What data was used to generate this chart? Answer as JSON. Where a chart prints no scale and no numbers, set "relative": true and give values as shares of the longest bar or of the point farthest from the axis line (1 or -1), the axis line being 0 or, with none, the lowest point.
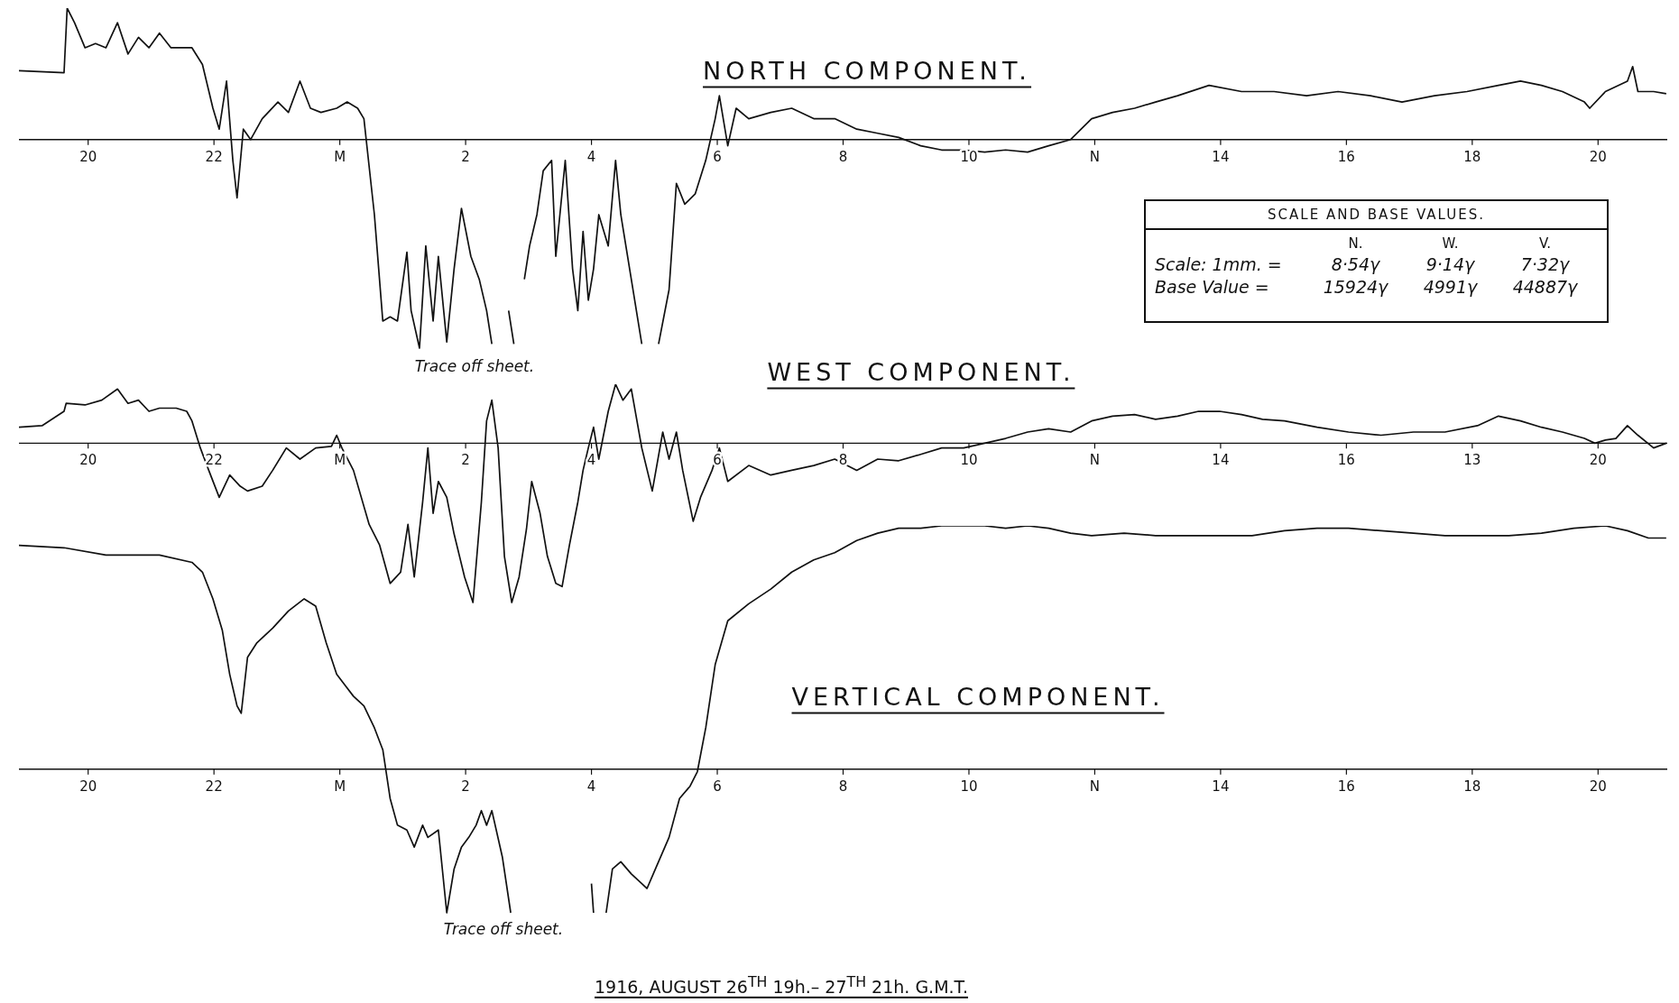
{
  "chart_data": [
    {
      "type": "line",
      "title": "NORTH COMPONENT.",
      "relative": true,
      "marker": "none",
      "color": "#111111",
      "annotations": [
        "Trace off sheet."
      ],
      "xlim": [
        "1916-08-26T18:54",
        "1916-08-27T21:06"
      ],
      "xticks": [
        {
          "value": "1916-08-26T20:00",
          "label": "20"
        },
        {
          "value": "1916-08-26T22:00",
          "label": "22"
        },
        {
          "value": "1916-08-27T00:00",
          "label": "M"
        },
        {
          "value": "1916-08-27T02:00",
          "label": "2"
        },
        {
          "value": "1916-08-27T04:00",
          "label": "4"
        },
        {
          "value": "1916-08-27T06:00",
          "label": "6"
        },
        {
          "value": "1916-08-27T08:00",
          "label": "8"
        },
        {
          "value": "1916-08-27T10:00",
          "label": "10"
        },
        {
          "value": "1916-08-27T12:00",
          "label": "N"
        },
        {
          "value": "1916-08-27T14:00",
          "label": "14"
        },
        {
          "value": "1916-08-27T16:00",
          "label": "16"
        },
        {
          "value": "1916-08-27T18:00",
          "label": "18"
        },
        {
          "value": "1916-08-27T20:00",
          "label": "20"
        }
      ],
      "x": [
        "1916-08-26T18:54",
        "1916-08-26T19:37",
        "1916-08-26T19:40",
        "1916-08-26T19:47",
        "1916-08-26T19:57",
        "1916-08-26T20:07",
        "1916-08-26T20:17",
        "1916-08-26T20:28",
        "1916-08-26T20:38",
        "1916-08-26T20:48",
        "1916-08-26T20:58",
        "1916-08-26T21:08",
        "1916-08-26T21:19",
        "1916-08-26T21:39",
        "1916-08-26T21:49",
        "1916-08-26T21:59",
        "1916-08-26T22:05",
        "1916-08-26T22:12",
        "1916-08-26T22:18",
        "1916-08-26T22:22",
        "1916-08-26T22:28",
        "1916-08-26T22:35",
        "1916-08-26T22:46",
        "1916-08-26T23:01",
        "1916-08-26T23:11",
        "1916-08-26T23:22",
        "1916-08-26T23:32",
        "1916-08-26T23:42",
        "1916-08-26T23:57",
        "1916-08-27T00:07",
        "1916-08-27T00:17",
        "1916-08-27T00:23",
        "1916-08-27T00:33",
        "1916-08-27T00:41",
        "1916-08-27T00:48",
        "1916-08-27T00:55",
        "1916-08-27T01:04",
        "1916-08-27T01:08",
        "1916-08-27T01:16",
        "1916-08-27T01:22",
        "1916-08-27T01:29",
        "1916-08-27T01:34",
        "1916-08-27T01:42",
        "1916-08-27T01:49",
        "1916-08-27T01:56",
        "1916-08-27T02:05",
        "1916-08-27T02:13",
        "1916-08-27T02:20",
        "1916-08-27T02:25",
        "1916-08-27T02:32",
        "1916-08-27T02:41",
        "1916-08-27T02:46",
        "1916-08-27T02:51",
        "1916-08-27T02:56",
        "1916-08-27T03:01",
        "1916-08-27T03:08",
        "1916-08-27T03:14",
        "1916-08-27T03:22",
        "1916-08-27T03:26",
        "1916-08-27T03:35",
        "1916-08-27T03:42",
        "1916-08-27T03:47",
        "1916-08-27T03:52",
        "1916-08-27T03:57",
        "1916-08-27T04:02",
        "1916-08-27T04:07",
        "1916-08-27T04:16",
        "1916-08-27T04:23",
        "1916-08-27T04:28",
        "1916-08-27T04:38",
        "1916-08-27T04:48",
        "1916-08-27T04:55",
        "1916-08-27T05:04",
        "1916-08-27T05:14",
        "1916-08-27T05:21",
        "1916-08-27T05:29",
        "1916-08-27T05:39",
        "1916-08-27T05:49",
        "1916-08-27T05:58",
        "1916-08-27T06:02",
        "1916-08-27T06:10",
        "1916-08-27T06:18",
        "1916-08-27T06:30",
        "1916-08-27T06:51",
        "1916-08-27T07:11",
        "1916-08-27T07:32",
        "1916-08-27T07:52",
        "1916-08-27T08:13",
        "1916-08-27T08:33",
        "1916-08-27T08:53",
        "1916-08-27T09:14",
        "1916-08-27T09:34",
        "1916-08-27T09:55",
        "1916-08-27T10:15",
        "1916-08-27T10:35",
        "1916-08-27T10:56",
        "1916-08-27T11:16",
        "1916-08-27T11:37",
        "1916-08-27T11:57",
        "1916-08-27T12:17",
        "1916-08-27T12:38",
        "1916-08-27T12:58",
        "1916-08-27T13:19",
        "1916-08-27T13:49",
        "1916-08-27T14:20",
        "1916-08-27T14:51",
        "1916-08-27T15:22",
        "1916-08-27T15:52",
        "1916-08-27T16:23",
        "1916-08-27T16:53",
        "1916-08-27T17:24",
        "1916-08-27T17:55",
        "1916-08-27T18:25",
        "1916-08-27T18:46",
        "1916-08-27T19:06",
        "1916-08-27T19:26",
        "1916-08-27T19:47",
        "1916-08-27T19:52",
        "1916-08-27T20:07",
        "1916-08-27T20:28",
        "1916-08-27T20:33",
        "1916-08-27T20:38",
        "1916-08-27T20:53",
        "1916-08-27T21:05"
      ],
      "values": [
        0.33,
        0.32,
        0.63,
        0.56,
        0.44,
        0.46,
        0.44,
        0.56,
        0.41,
        0.49,
        0.44,
        0.51,
        0.44,
        0.44,
        0.36,
        0.15,
        0.05,
        0.28,
        -0.1,
        -0.28,
        0.05,
        0,
        0.1,
        0.18,
        0.13,
        0.28,
        0.15,
        0.13,
        0.15,
        0.18,
        0.15,
        0.1,
        -0.36,
        -0.87,
        -0.85,
        -0.87,
        -0.54,
        -0.82,
        -1,
        -0.51,
        -0.87,
        -0.56,
        -0.97,
        -0.62,
        -0.33,
        -0.56,
        -0.67,
        -0.82,
        -0.98,
        null,
        -0.82,
        -0.98,
        null,
        -0.67,
        -0.51,
        -0.36,
        -0.15,
        -0.1,
        -0.56,
        -0.1,
        -0.62,
        -0.82,
        -0.44,
        -0.77,
        -0.62,
        -0.36,
        -0.51,
        -0.1,
        -0.36,
        -0.67,
        -0.98,
        null,
        -0.98,
        -0.72,
        -0.21,
        -0.31,
        -0.26,
        -0.1,
        0.1,
        0.21,
        -0.03,
        0.15,
        0.1,
        0.13,
        0.15,
        0.1,
        0.1,
        0.05,
        0.03,
        0.01,
        -0.03,
        -0.05,
        -0.05,
        -0.06,
        -0.05,
        -0.06,
        -0.03,
        0,
        0.1,
        0.13,
        0.15,
        0.18,
        0.21,
        0.26,
        0.23,
        0.23,
        0.21,
        0.23,
        0.21,
        0.18,
        0.21,
        0.23,
        0.26,
        0.28,
        0.26,
        0.23,
        0.18,
        0.15,
        0.23,
        0.28,
        0.35,
        0.23,
        0.23,
        0.22
      ]
    },
    {
      "type": "line",
      "title": "WEST COMPONENT.",
      "relative": true,
      "marker": "none",
      "color": "#111111",
      "xlim": [
        "1916-08-26T18:54",
        "1916-08-27T21:06"
      ],
      "xticks": [
        {
          "value": "1916-08-26T20:00",
          "label": "20"
        },
        {
          "value": "1916-08-26T22:00",
          "label": "22"
        },
        {
          "value": "1916-08-27T00:00",
          "label": "M"
        },
        {
          "value": "1916-08-27T02:00",
          "label": "2"
        },
        {
          "value": "1916-08-27T04:00",
          "label": "4"
        },
        {
          "value": "1916-08-27T06:00",
          "label": "6"
        },
        {
          "value": "1916-08-27T08:00",
          "label": "8"
        },
        {
          "value": "1916-08-27T10:00",
          "label": "10"
        },
        {
          "value": "1916-08-27T12:00",
          "label": "N"
        },
        {
          "value": "1916-08-27T14:00",
          "label": "14"
        },
        {
          "value": "1916-08-27T16:00",
          "label": "16"
        },
        {
          "value": "1916-08-27T18:00",
          "label": "13"
        },
        {
          "value": "1916-08-27T20:00",
          "label": "20"
        }
      ],
      "x": [
        "1916-08-26T18:54",
        "1916-08-26T19:16",
        "1916-08-26T19:37",
        "1916-08-26T19:39",
        "1916-08-26T19:57",
        "1916-08-26T20:13",
        "1916-08-26T20:28",
        "1916-08-26T20:38",
        "1916-08-26T20:48",
        "1916-08-26T20:58",
        "1916-08-26T21:08",
        "1916-08-26T21:24",
        "1916-08-26T21:34",
        "1916-08-26T21:39",
        "1916-08-26T21:47",
        "1916-08-26T21:55",
        "1916-08-26T22:05",
        "1916-08-26T22:15",
        "1916-08-26T22:25",
        "1916-08-26T22:32",
        "1916-08-26T22:46",
        "1916-08-26T22:56",
        "1916-08-26T23:09",
        "1916-08-26T23:22",
        "1916-08-26T23:37",
        "1916-08-26T23:52",
        "1916-08-26T23:57",
        "1916-08-27T00:02",
        "1916-08-27T00:13",
        "1916-08-27T00:28",
        "1916-08-27T00:38",
        "1916-08-27T00:48",
        "1916-08-27T00:58",
        "1916-08-27T01:05",
        "1916-08-27T01:11",
        "1916-08-27T01:19",
        "1916-08-27T01:24",
        "1916-08-27T01:29",
        "1916-08-27T01:34",
        "1916-08-27T01:42",
        "1916-08-27T01:49",
        "1916-08-27T01:59",
        "1916-08-27T02:07",
        "1916-08-27T02:15",
        "1916-08-27T02:20",
        "1916-08-27T02:25",
        "1916-08-27T02:31",
        "1916-08-27T02:37",
        "1916-08-27T02:44",
        "1916-08-27T02:51",
        "1916-08-27T02:58",
        "1916-08-27T03:03",
        "1916-08-27T03:11",
        "1916-08-27T03:18",
        "1916-08-27T03:26",
        "1916-08-27T03:32",
        "1916-08-27T03:39",
        "1916-08-27T03:47",
        "1916-08-27T03:52",
        "1916-08-27T03:57",
        "1916-08-27T04:02",
        "1916-08-27T04:07",
        "1916-08-27T04:16",
        "1916-08-27T04:23",
        "1916-08-27T04:30",
        "1916-08-27T04:38",
        "1916-08-27T04:48",
        "1916-08-27T04:58",
        "1916-08-27T05:08",
        "1916-08-27T05:14",
        "1916-08-27T05:21",
        "1916-08-27T05:27",
        "1916-08-27T05:37",
        "1916-08-27T05:44",
        "1916-08-27T05:55",
        "1916-08-27T06:02",
        "1916-08-27T06:10",
        "1916-08-27T06:30",
        "1916-08-27T06:51",
        "1916-08-27T07:11",
        "1916-08-27T07:32",
        "1916-08-27T07:52",
        "1916-08-27T08:13",
        "1916-08-27T08:33",
        "1916-08-27T08:53",
        "1916-08-27T09:14",
        "1916-08-27T09:34",
        "1916-08-27T09:55",
        "1916-08-27T10:15",
        "1916-08-27T10:35",
        "1916-08-27T10:56",
        "1916-08-27T11:16",
        "1916-08-27T11:37",
        "1916-08-27T11:57",
        "1916-08-27T12:17",
        "1916-08-27T12:38",
        "1916-08-27T12:58",
        "1916-08-27T13:19",
        "1916-08-27T13:39",
        "1916-08-27T13:59",
        "1916-08-27T14:20",
        "1916-08-27T14:40",
        "1916-08-27T15:01",
        "1916-08-27T15:32",
        "1916-08-27T16:02",
        "1916-08-27T16:33",
        "1916-08-27T17:04",
        "1916-08-27T17:34",
        "1916-08-27T18:05",
        "1916-08-27T18:25",
        "1916-08-27T18:46",
        "1916-08-27T19:06",
        "1916-08-27T19:26",
        "1916-08-27T19:47",
        "1916-08-27T19:57",
        "1916-08-27T20:07",
        "1916-08-27T20:17",
        "1916-08-27T20:28",
        "1916-08-27T20:38",
        "1916-08-27T20:53",
        "1916-08-27T21:05"
      ],
      "values": [
        0.1,
        0.11,
        0.2,
        0.25,
        0.24,
        0.27,
        0.34,
        0.25,
        0.27,
        0.2,
        0.22,
        0.22,
        0.2,
        0.14,
        -0.03,
        -0.17,
        -0.34,
        -0.2,
        -0.27,
        -0.3,
        -0.27,
        -0.17,
        -0.03,
        -0.1,
        -0.03,
        -0.02,
        0.05,
        -0.03,
        -0.17,
        -0.51,
        -0.64,
        -0.88,
        -0.81,
        -0.51,
        -0.84,
        -0.37,
        -0.03,
        -0.44,
        -0.24,
        -0.34,
        -0.57,
        -0.84,
        -1,
        -0.37,
        0.14,
        0.27,
        -0.03,
        -0.71,
        -1,
        -0.84,
        -0.54,
        -0.24,
        -0.44,
        -0.71,
        -0.88,
        -0.9,
        -0.64,
        -0.37,
        -0.17,
        -0.03,
        0.1,
        -0.1,
        0.2,
        0.37,
        0.27,
        0.34,
        -0.03,
        -0.3,
        0.07,
        -0.1,
        0.07,
        -0.17,
        -0.49,
        -0.34,
        -0.17,
        -0.03,
        -0.24,
        -0.14,
        -0.2,
        -0.17,
        -0.14,
        -0.1,
        -0.17,
        -0.1,
        -0.11,
        -0.07,
        -0.03,
        -0.03,
        0,
        0.03,
        0.07,
        0.09,
        0.07,
        0.14,
        0.17,
        0.18,
        0.15,
        0.17,
        0.2,
        0.2,
        0.18,
        0.15,
        0.14,
        0.1,
        0.07,
        0.05,
        0.07,
        0.07,
        0.11,
        0.17,
        0.14,
        0.1,
        0.07,
        0.03,
        0,
        0.02,
        0.03,
        0.11,
        0.05,
        -0.03,
        0
      ]
    },
    {
      "type": "line",
      "title": "VERTICAL COMPONENT.",
      "relative": true,
      "marker": "none",
      "color": "#111111",
      "annotations": [
        "Trace off sheet.",
        "1916, AUGUST 26$^{TH}$ 19h.– 27$^{TH}$ 21h.   G.M.T."
      ],
      "xlim": [
        "1916-08-26T18:54",
        "1916-08-27T21:06"
      ],
      "xticks": [
        {
          "value": "1916-08-26T20:00",
          "label": "20"
        },
        {
          "value": "1916-08-26T22:00",
          "label": "22"
        },
        {
          "value": "1916-08-27T00:00",
          "label": "M"
        },
        {
          "value": "1916-08-27T02:00",
          "label": "2"
        },
        {
          "value": "1916-08-27T04:00",
          "label": "4"
        },
        {
          "value": "1916-08-27T06:00",
          "label": "6"
        },
        {
          "value": "1916-08-27T08:00",
          "label": "8"
        },
        {
          "value": "1916-08-27T10:00",
          "label": "10"
        },
        {
          "value": "1916-08-27T12:00",
          "label": "N"
        },
        {
          "value": "1916-08-27T14:00",
          "label": "14"
        },
        {
          "value": "1916-08-27T16:00",
          "label": "16"
        },
        {
          "value": "1916-08-27T18:00",
          "label": "18"
        },
        {
          "value": "1916-08-27T20:00",
          "label": "20"
        }
      ],
      "x": [
        "1916-08-26T18:54",
        "1916-08-26T19:37",
        "1916-08-26T20:17",
        "1916-08-26T21:08",
        "1916-08-26T21:39",
        "1916-08-26T21:49",
        "1916-08-26T21:59",
        "1916-08-26T22:08",
        "1916-08-26T22:15",
        "1916-08-26T22:22",
        "1916-08-26T22:26",
        "1916-08-26T22:32",
        "1916-08-26T22:41",
        "1916-08-26T22:56",
        "1916-08-26T23:11",
        "1916-08-26T23:26",
        "1916-08-26T23:37",
        "1916-08-26T23:47",
        "1916-08-26T23:57",
        "1916-08-27T00:13",
        "1916-08-27T00:23",
        "1916-08-27T00:33",
        "1916-08-27T00:41",
        "1916-08-27T00:48",
        "1916-08-27T00:55",
        "1916-08-27T01:04",
        "1916-08-27T01:11",
        "1916-08-27T01:19",
        "1916-08-27T01:24",
        "1916-08-27T01:34",
        "1916-08-27T01:42",
        "1916-08-27T01:49",
        "1916-08-27T01:56",
        "1916-08-27T02:03",
        "1916-08-27T02:10",
        "1916-08-27T02:15",
        "1916-08-27T02:20",
        "1916-08-27T02:25",
        "1916-08-27T02:35",
        "1916-08-27T02:43",
        "1916-08-27T02:56",
        "1916-08-27T04:00",
        "1916-08-27T04:02",
        "1916-08-27T04:07",
        "1916-08-27T04:14",
        "1916-08-27T04:20",
        "1916-08-27T04:28",
        "1916-08-27T04:38",
        "1916-08-27T04:48",
        "1916-08-27T04:53",
        "1916-08-27T05:01",
        "1916-08-27T05:14",
        "1916-08-27T05:24",
        "1916-08-27T05:34",
        "1916-08-27T05:41",
        "1916-08-27T05:49",
        "1916-08-27T05:58",
        "1916-08-27T06:10",
        "1916-08-27T06:30",
        "1916-08-27T06:51",
        "1916-08-27T07:11",
        "1916-08-27T07:32",
        "1916-08-27T07:52",
        "1916-08-27T08:13",
        "1916-08-27T08:33",
        "1916-08-27T08:53",
        "1916-08-27T09:14",
        "1916-08-27T09:34",
        "1916-08-27T09:55",
        "1916-08-27T10:15",
        "1916-08-27T10:35",
        "1916-08-27T10:56",
        "1916-08-27T11:16",
        "1916-08-27T11:37",
        "1916-08-27T11:57",
        "1916-08-27T12:28",
        "1916-08-27T12:58",
        "1916-08-27T13:29",
        "1916-08-27T13:59",
        "1916-08-27T14:30",
        "1916-08-27T15:01",
        "1916-08-27T15:32",
        "1916-08-27T16:02",
        "1916-08-27T16:33",
        "1916-08-27T17:04",
        "1916-08-27T17:34",
        "1916-08-27T18:05",
        "1916-08-27T18:35",
        "1916-08-27T19:06",
        "1916-08-27T19:37",
        "1916-08-27T20:07",
        "1916-08-27T20:28",
        "1916-08-27T20:48",
        "1916-08-27T21:05"
      ],
      "values": [
        0.92,
        0.91,
        0.88,
        0.88,
        0.85,
        0.81,
        0.7,
        0.57,
        0.39,
        0.26,
        0.23,
        0.46,
        0.52,
        0.58,
        0.65,
        0.7,
        0.67,
        0.52,
        0.39,
        0.3,
        0.26,
        0.17,
        0.08,
        -0.12,
        -0.23,
        -0.25,
        -0.32,
        -0.23,
        -0.28,
        -0.25,
        -0.59,
        -0.41,
        -0.32,
        -0.28,
        -0.23,
        -0.17,
        -0.23,
        -0.17,
        -0.36,
        -0.59,
        null,
        -0.47,
        -0.59,
        null,
        -0.59,
        -0.41,
        -0.38,
        -0.43,
        -0.47,
        -0.49,
        -0.41,
        -0.28,
        -0.12,
        -0.07,
        -0.01,
        0.17,
        0.43,
        0.61,
        0.68,
        0.74,
        0.81,
        0.86,
        0.89,
        0.94,
        0.97,
        0.99,
        0.99,
        1,
        1,
        1,
        0.99,
        1,
        0.99,
        0.97,
        0.96,
        0.97,
        0.96,
        0.96,
        0.96,
        0.96,
        0.98,
        0.99,
        0.99,
        0.98,
        0.97,
        0.96,
        0.96,
        0.96,
        0.97,
        0.99,
        1,
        0.98,
        0.95,
        0.95
      ]
    },
    {
      "type": "other",
      "title": "SCALE AND BASE VALUES.",
      "annotations": [
        "N.",
        "W.",
        "V.",
        "Scale: 1mm. =",
        "8·54γ",
        "9·14γ",
        "7·32γ",
        "Base Value =",
        "15924γ",
        "4991γ",
        "44887γ"
      ]
    }
  ]
}
